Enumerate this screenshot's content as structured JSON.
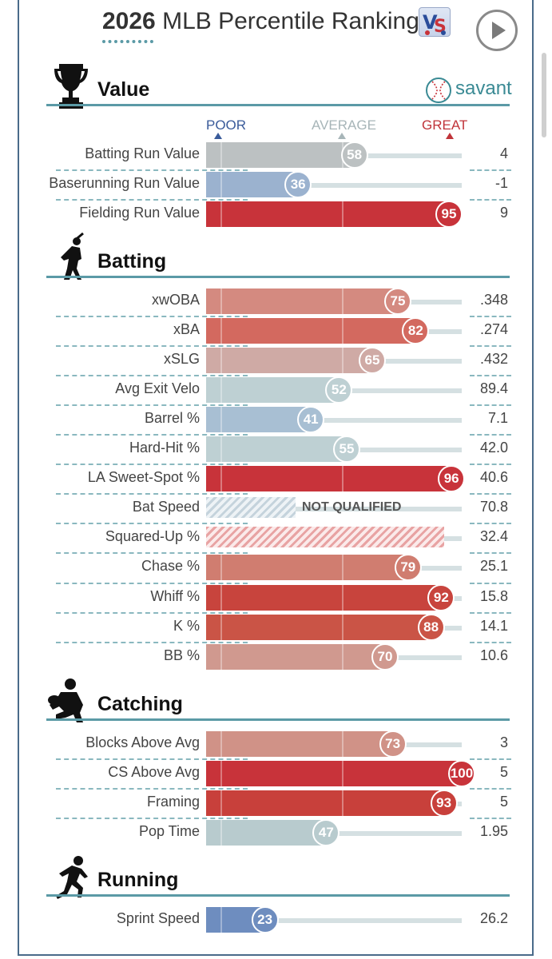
{
  "header": {
    "year": "2026",
    "title": "MLB Percentile Rankings",
    "brand": "savant"
  },
  "legend": {
    "poor": "POOR",
    "average": "AVERAGE",
    "great": "GREAT"
  },
  "colors": {
    "great": "#c8333a",
    "average": "#bec6c7",
    "poor": "#4c6fb0",
    "accent": "#5b9aa6"
  },
  "sections": [
    {
      "id": "value",
      "title": "Value",
      "icon": "trophy-icon",
      "rows": [
        {
          "label": "Batting Run Value",
          "percentile": 58,
          "value": "4",
          "color": "#bcc1c2"
        },
        {
          "label": "Baserunning Run Value",
          "percentile": 36,
          "value": "-1",
          "color": "#9bb2cf"
        },
        {
          "label": "Fielding Run Value",
          "percentile": 95,
          "value": "9",
          "color": "#c8333a"
        }
      ]
    },
    {
      "id": "batting",
      "title": "Batting",
      "icon": "batter-icon",
      "rows": [
        {
          "label": "xwOBA",
          "percentile": 75,
          "value": ".348",
          "color": "#d48a80"
        },
        {
          "label": "xBA",
          "percentile": 82,
          "value": ".274",
          "color": "#d3695f"
        },
        {
          "label": "xSLG",
          "percentile": 65,
          "value": ".432",
          "color": "#cfaaa5"
        },
        {
          "label": "Avg Exit Velo",
          "percentile": 52,
          "value": "89.4",
          "color": "#bed0d3"
        },
        {
          "label": "Barrel %",
          "percentile": 41,
          "value": "7.1",
          "color": "#a8bfd3"
        },
        {
          "label": "Hard-Hit %",
          "percentile": 55,
          "value": "42.0",
          "color": "#bed0d3"
        },
        {
          "label": "LA Sweet-Spot %",
          "percentile": 96,
          "value": "40.6",
          "color": "#c8333a"
        },
        {
          "label": "Bat Speed",
          "percentile": null,
          "value": "70.8",
          "qualified": false,
          "note": "NOT QUALIFIED"
        },
        {
          "label": "Squared-Up %",
          "percentile": null,
          "value": "32.4",
          "qualified": false
        },
        {
          "label": "Chase %",
          "percentile": 79,
          "value": "25.1",
          "color": "#d07d70"
        },
        {
          "label": "Whiff %",
          "percentile": 92,
          "value": "15.8",
          "color": "#c8443d"
        },
        {
          "label": "K %",
          "percentile": 88,
          "value": "14.1",
          "color": "#ca5446"
        },
        {
          "label": "BB %",
          "percentile": 70,
          "value": "10.6",
          "color": "#d0998f"
        }
      ]
    },
    {
      "id": "catching",
      "title": "Catching",
      "icon": "catcher-icon",
      "rows": [
        {
          "label": "Blocks Above Avg",
          "percentile": 73,
          "value": "3",
          "color": "#d09287"
        },
        {
          "label": "CS Above Avg",
          "percentile": 100,
          "value": "5",
          "color": "#c8333a"
        },
        {
          "label": "Framing",
          "percentile": 93,
          "value": "5",
          "color": "#c8403b"
        },
        {
          "label": "Pop Time",
          "percentile": 47,
          "value": "1.95",
          "color": "#b8cbce"
        }
      ]
    },
    {
      "id": "running",
      "title": "Running",
      "icon": "runner-icon",
      "rows": [
        {
          "label": "Sprint Speed",
          "percentile": 23,
          "value": "26.2",
          "color": "#6e8dbf"
        }
      ]
    }
  ]
}
